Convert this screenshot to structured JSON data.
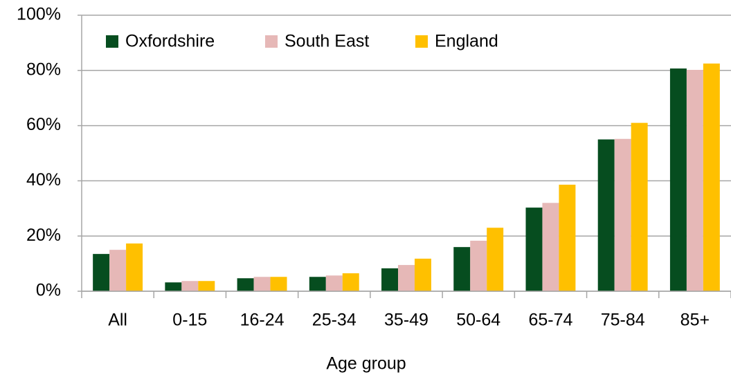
{
  "chart_data": {
    "type": "bar",
    "x_label": "Age group",
    "categories": [
      "All",
      "0-15",
      "16-24",
      "25-34",
      "35-49",
      "50-64",
      "65-74",
      "75-84",
      "85+"
    ],
    "series": [
      {
        "name": "Oxfordshire",
        "color": "#064d1f",
        "values": [
          13.5,
          3.2,
          4.7,
          5.2,
          8.3,
          16,
          30.3,
          55,
          80.7
        ]
      },
      {
        "name": "South East",
        "color": "#e6b8b7",
        "values": [
          15,
          3.7,
          5.2,
          5.7,
          9.5,
          18.3,
          32,
          55.2,
          80.2
        ]
      },
      {
        "name": "England",
        "color": "#ffc000",
        "values": [
          17.3,
          3.7,
          5.2,
          6.5,
          11.8,
          23,
          38.6,
          61,
          82.5
        ]
      }
    ],
    "ylim": [
      0,
      100
    ],
    "yticks": [
      {
        "value": 0,
        "label": "0%"
      },
      {
        "value": 20,
        "label": "20%"
      },
      {
        "value": 40,
        "label": "40%"
      },
      {
        "value": 60,
        "label": "60%"
      },
      {
        "value": 80,
        "label": "80%"
      },
      {
        "value": 100,
        "label": "100%"
      }
    ],
    "grid": true,
    "legend": "top-left"
  }
}
